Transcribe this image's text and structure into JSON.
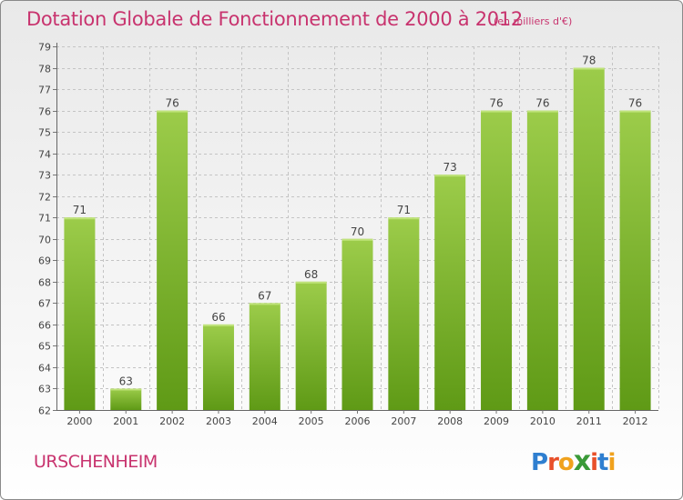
{
  "header": {
    "title": "Dotation Globale de Fonctionnement de 2000 à 2012",
    "subtitle": "(en milliers d'€)"
  },
  "footer": {
    "place": "URSCHENHEIM",
    "logo_text": "Proxiti"
  },
  "colors": {
    "accent": "#c8336e",
    "bar_light": "#9ccc4a",
    "bar_dark": "#5f9a16",
    "grid": "#c4c4c4"
  },
  "chart_data": {
    "type": "bar",
    "title": "Dotation Globale de Fonctionnement de 2000 à 2012",
    "subtitle": "(en milliers d'€)",
    "categories": [
      "2000",
      "2001",
      "2002",
      "2003",
      "2004",
      "2005",
      "2006",
      "2007",
      "2008",
      "2009",
      "2010",
      "2011",
      "2012"
    ],
    "values": [
      71,
      63,
      76,
      66,
      67,
      68,
      70,
      71,
      73,
      76,
      76,
      78,
      76
    ],
    "ylim": [
      62,
      79
    ],
    "yticks": [
      62,
      63,
      64,
      65,
      66,
      67,
      68,
      69,
      70,
      71,
      72,
      73,
      74,
      75,
      76,
      77,
      78,
      79
    ],
    "grid": true,
    "data_labels": true
  }
}
